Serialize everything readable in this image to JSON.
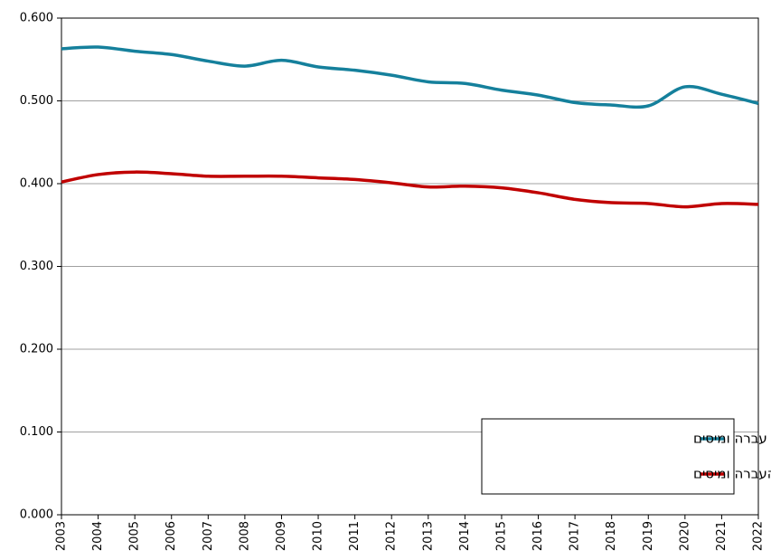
{
  "chart_data": {
    "type": "line",
    "categories": [
      "2003",
      "2004",
      "2005",
      "2006",
      "2007",
      "2008",
      "2009",
      "2010",
      "2011",
      "2012",
      "2013",
      "2014",
      "2015",
      "2016",
      "2017",
      "2018",
      "2019",
      "2020",
      "2021",
      "2022"
    ],
    "series": [
      {
        "name": "לפני תשלומי עברה ומיסים",
        "color": "#15809c",
        "values": [
          0.563,
          0.565,
          0.56,
          0.556,
          0.548,
          0.542,
          0.549,
          0.541,
          0.537,
          0.531,
          0.523,
          0.521,
          0.513,
          0.507,
          0.498,
          0.495,
          0.494,
          0.517,
          0.508,
          0.497
        ]
      },
      {
        "name": "אחרי תשלומי  העברה ומיסים",
        "color": "#c00000",
        "values": [
          0.402,
          0.411,
          0.414,
          0.412,
          0.409,
          0.409,
          0.409,
          0.407,
          0.405,
          0.401,
          0.396,
          0.397,
          0.395,
          0.389,
          0.381,
          0.377,
          0.376,
          0.372,
          0.376,
          0.375
        ]
      }
    ],
    "ylim": [
      0,
      0.6
    ],
    "yticks": [
      {
        "value": 0,
        "label": "0.000"
      },
      {
        "value": 0.1,
        "label": "0.100"
      },
      {
        "value": 0.2,
        "label": "0.200"
      },
      {
        "value": 0.3,
        "label": "0.300"
      },
      {
        "value": 0.4,
        "label": "0.400"
      },
      {
        "value": 0.5,
        "label": "0.500"
      },
      {
        "value": 0.6,
        "label": "0.600"
      }
    ],
    "grid": true,
    "legend": "lower-right"
  }
}
